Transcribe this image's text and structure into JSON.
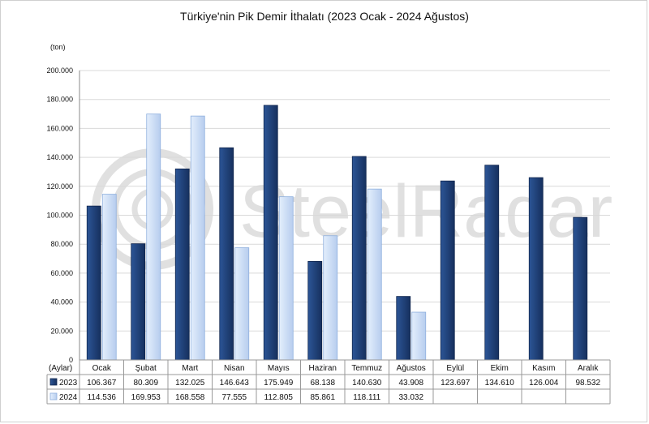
{
  "colors": {
    "series_2023": "#1f3f7a",
    "series_2024": "#cfe0f7",
    "grid": "#d9d9d9",
    "watermark": "#c8c8c8"
  },
  "watermark_text": "SteelRadar",
  "chart_data": {
    "type": "bar",
    "title": "Türkiye'nin Pik Demir İthalatı (2023 Ocak - 2024 Ağustos)",
    "unit_label": "(ton)",
    "category_axis_label": "(Aylar)",
    "categories": [
      "Ocak",
      "Şubat",
      "Mart",
      "Nisan",
      "Mayıs",
      "Haziran",
      "Temmuz",
      "Ağustos",
      "Eylül",
      "Ekim",
      "Kasım",
      "Aralık"
    ],
    "series": [
      {
        "name": "2023",
        "values": [
          106367,
          80309,
          132025,
          146643,
          175949,
          68138,
          140630,
          43908,
          123697,
          134610,
          126004,
          98532
        ],
        "labels": [
          "106.367",
          "80.309",
          "132.025",
          "146.643",
          "175.949",
          "68.138",
          "140.630",
          "43.908",
          "123.697",
          "134.610",
          "126.004",
          "98.532"
        ]
      },
      {
        "name": "2024",
        "values": [
          114536,
          169953,
          168558,
          77555,
          112805,
          85861,
          118111,
          33032,
          null,
          null,
          null,
          null
        ],
        "labels": [
          "114.536",
          "169.953",
          "168.558",
          "77.555",
          "112.805",
          "85.861",
          "118.111",
          "33.032",
          "",
          "",
          "",
          ""
        ]
      }
    ],
    "ylim": [
      0,
      200000
    ],
    "yticks": [
      0,
      20000,
      40000,
      60000,
      80000,
      100000,
      120000,
      140000,
      160000,
      180000,
      200000
    ],
    "ytick_labels": [
      "0",
      "20.000",
      "40.000",
      "60.000",
      "80.000",
      "100.000",
      "120.000",
      "140.000",
      "160.000",
      "180.000",
      "200.000"
    ],
    "grid": true,
    "legend": "data table below chart"
  }
}
